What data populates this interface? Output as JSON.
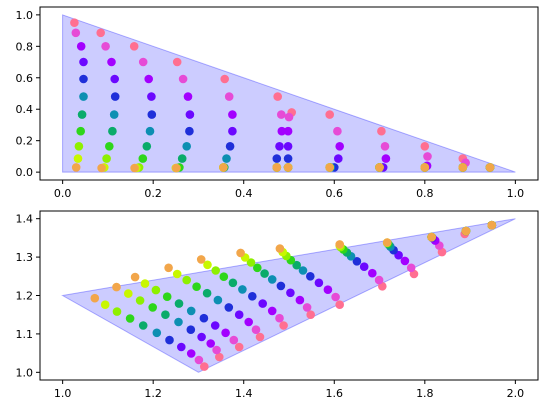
{
  "chart_data": [
    {
      "type": "scatter",
      "title": "",
      "xlabel": "",
      "ylabel": "",
      "xlim": [
        -0.05,
        1.05
      ],
      "ylim": [
        -0.05,
        1.05
      ],
      "xticks": [
        0.0,
        0.2,
        0.4,
        0.6,
        0.8,
        1.0
      ],
      "yticks": [
        0.0,
        0.2,
        0.4,
        0.6,
        0.8,
        1.0
      ],
      "xtick_labels": [
        "0.0",
        "0.2",
        "0.4",
        "0.6",
        "0.8",
        "1.0"
      ],
      "ytick_labels": [
        "0.0",
        "0.2",
        "0.4",
        "0.6",
        "0.8",
        "1.0"
      ],
      "grid": false,
      "region_polygon": [
        [
          0,
          0
        ],
        [
          1,
          0
        ],
        [
          0,
          1
        ]
      ],
      "region_color": "#0000ff",
      "colors": [
        "#ff6f91",
        "#e64bd6",
        "#a300ff",
        "#6b08ff",
        "#1f2fd9",
        "#0d8fb2",
        "#0aab6a",
        "#2ed61a",
        "#8ef000",
        "#c8f700",
        "#f2a64a"
      ],
      "series": [
        {
          "x": [
            0.026,
            0.029,
            0.041,
            0.046,
            0.046,
            0.046,
            0.043,
            0.04,
            0.036,
            0.034,
            0.03
          ],
          "y": [
            0.95,
            0.886,
            0.8,
            0.7,
            0.592,
            0.48,
            0.366,
            0.26,
            0.164,
            0.086,
            0.03
          ]
        },
        {
          "x": [
            0.084,
            0.095,
            0.108,
            0.115,
            0.116,
            0.114,
            0.11,
            0.103,
            0.097,
            0.092,
            0.086
          ],
          "y": [
            0.886,
            0.8,
            0.7,
            0.592,
            0.48,
            0.366,
            0.26,
            0.164,
            0.086,
            0.03,
            0.026
          ]
        },
        {
          "x": [
            0.158,
            0.178,
            0.19,
            0.196,
            0.197,
            0.193,
            0.186,
            0.177,
            0.169,
            0.163,
            0.159
          ],
          "y": [
            0.8,
            0.7,
            0.592,
            0.48,
            0.366,
            0.26,
            0.164,
            0.086,
            0.03,
            0.026,
            0.026
          ]
        },
        {
          "x": [
            0.253,
            0.266,
            0.277,
            0.281,
            0.28,
            0.274,
            0.264,
            0.258,
            0.252,
            0.25,
            0.251
          ],
          "y": [
            0.7,
            0.592,
            0.48,
            0.366,
            0.26,
            0.164,
            0.086,
            0.03,
            0.026,
            0.026,
            0.026
          ]
        },
        {
          "x": [
            0.358,
            0.368,
            0.375,
            0.375,
            0.37,
            0.362,
            0.357,
            0.355,
            0.355,
            0.355,
            0.355
          ],
          "y": [
            0.592,
            0.48,
            0.366,
            0.26,
            0.164,
            0.086,
            0.03,
            0.03,
            0.03,
            0.03,
            0.03
          ]
        },
        {
          "x": [
            0.475,
            0.483,
            0.484,
            0.479,
            0.473,
            0.473,
            0.473,
            0.473,
            0.473,
            0.473,
            0.473
          ],
          "y": [
            0.48,
            0.366,
            0.26,
            0.164,
            0.086,
            0.03,
            0.03,
            0.03,
            0.03,
            0.03,
            0.03
          ]
        },
        {
          "x": [
            0.506,
            0.5,
            0.498,
            0.498,
            0.498,
            0.498,
            0.498,
            0.498,
            0.498,
            0.498,
            0.498
          ],
          "y": [
            0.38,
            0.35,
            0.26,
            0.164,
            0.086,
            0.03,
            0.03,
            0.03,
            0.03,
            0.03,
            0.03
          ]
        },
        {
          "x": [
            0.59,
            0.607,
            0.612,
            0.609,
            0.6,
            0.592,
            0.59,
            0.59,
            0.59,
            0.59,
            0.59
          ],
          "y": [
            0.366,
            0.26,
            0.164,
            0.086,
            0.03,
            0.03,
            0.03,
            0.03,
            0.03,
            0.03,
            0.03
          ]
        },
        {
          "x": [
            0.704,
            0.712,
            0.714,
            0.708,
            0.7,
            0.7,
            0.7,
            0.7,
            0.7,
            0.7,
            0.7
          ],
          "y": [
            0.26,
            0.164,
            0.086,
            0.03,
            0.03,
            0.03,
            0.03,
            0.03,
            0.03,
            0.03,
            0.03
          ]
        },
        {
          "x": [
            0.8,
            0.806,
            0.805,
            0.8,
            0.8,
            0.8,
            0.8,
            0.8,
            0.8,
            0.8,
            0.8
          ],
          "y": [
            0.164,
            0.1,
            0.04,
            0.03,
            0.03,
            0.03,
            0.03,
            0.03,
            0.03,
            0.03,
            0.03
          ]
        },
        {
          "x": [
            0.884,
            0.89,
            0.884,
            0.884,
            0.884,
            0.884,
            0.884,
            0.884,
            0.884,
            0.884,
            0.884
          ],
          "y": [
            0.086,
            0.06,
            0.03,
            0.03,
            0.03,
            0.03,
            0.03,
            0.03,
            0.03,
            0.03,
            0.03
          ]
        },
        {
          "x": [
            0.944,
            0.944,
            0.944,
            0.944,
            0.944,
            0.944,
            0.944,
            0.944,
            0.944,
            0.944,
            0.944
          ],
          "y": [
            0.03,
            0.03,
            0.03,
            0.03,
            0.03,
            0.03,
            0.03,
            0.03,
            0.03,
            0.03,
            0.03
          ]
        }
      ]
    },
    {
      "type": "scatter",
      "title": "",
      "xlabel": "",
      "ylabel": "",
      "xlim": [
        0.95,
        2.05
      ],
      "ylim": [
        0.98,
        1.42
      ],
      "xticks": [
        1.0,
        1.2,
        1.4,
        1.6,
        1.8,
        2.0
      ],
      "yticks": [
        1.0,
        1.1,
        1.2,
        1.3,
        1.4
      ],
      "xtick_labels": [
        "1.0",
        "1.2",
        "1.4",
        "1.6",
        "1.8",
        "2.0"
      ],
      "ytick_labels": [
        "1.0",
        "1.1",
        "1.2",
        "1.3",
        "1.4"
      ],
      "grid": false,
      "region_polygon": [
        [
          1.0,
          1.2
        ],
        [
          2.0,
          1.4
        ],
        [
          1.3,
          1.0
        ]
      ],
      "region_color": "#0000ff",
      "colors": [
        "#ff6f91",
        "#e64bd6",
        "#a300ff",
        "#6b08ff",
        "#1f2fd9",
        "#0d8fb2",
        "#0aab6a",
        "#2ed61a",
        "#8ef000",
        "#c8f700",
        "#f2a64a"
      ],
      "series": [
        {
          "x": [
            1.313,
            1.301,
            1.284,
            1.262,
            1.236,
            1.208,
            1.178,
            1.149,
            1.12,
            1.094,
            1.071
          ],
          "y": [
            1.015,
            1.032,
            1.049,
            1.066,
            1.084,
            1.103,
            1.122,
            1.14,
            1.158,
            1.176,
            1.193
          ]
        },
        {
          "x": [
            1.346,
            1.34,
            1.327,
            1.307,
            1.283,
            1.256,
            1.227,
            1.199,
            1.171,
            1.145,
            1.119
          ],
          "y": [
            1.04,
            1.058,
            1.075,
            1.092,
            1.111,
            1.131,
            1.15,
            1.169,
            1.187,
            1.205,
            1.222
          ]
        },
        {
          "x": [
            1.39,
            1.378,
            1.36,
            1.337,
            1.312,
            1.284,
            1.257,
            1.231,
            1.206,
            1.182,
            1.16
          ],
          "y": [
            1.066,
            1.084,
            1.103,
            1.122,
            1.141,
            1.16,
            1.179,
            1.197,
            1.214,
            1.231,
            1.248
          ]
        },
        {
          "x": [
            1.436,
            1.427,
            1.411,
            1.39,
            1.367,
            1.343,
            1.319,
            1.296,
            1.274,
            1.253,
            1.234
          ],
          "y": [
            1.092,
            1.111,
            1.131,
            1.15,
            1.169,
            1.188,
            1.206,
            1.223,
            1.24,
            1.256,
            1.272
          ]
        },
        {
          "x": [
            1.488,
            1.479,
            1.463,
            1.442,
            1.419,
            1.397,
            1.376,
            1.356,
            1.338,
            1.32,
            1.306
          ],
          "y": [
            1.122,
            1.141,
            1.16,
            1.179,
            1.198,
            1.216,
            1.233,
            1.249,
            1.265,
            1.28,
            1.294
          ]
        },
        {
          "x": [
            1.548,
            1.54,
            1.524,
            1.503,
            1.482,
            1.463,
            1.446,
            1.43,
            1.416,
            1.403,
            1.393
          ],
          "y": [
            1.15,
            1.169,
            1.188,
            1.207,
            1.225,
            1.242,
            1.257,
            1.272,
            1.286,
            1.299,
            1.311
          ]
        },
        {
          "x": [
            1.612,
            1.603,
            1.586,
            1.566,
            1.547,
            1.531,
            1.517,
            1.504,
            1.494,
            1.486,
            1.48
          ],
          "y": [
            1.176,
            1.196,
            1.215,
            1.233,
            1.25,
            1.265,
            1.279,
            1.292,
            1.303,
            1.313,
            1.322
          ]
        },
        {
          "x": [
            1.706,
            1.699,
            1.684,
            1.666,
            1.65,
            1.637,
            1.628,
            1.62,
            1.614,
            1.612,
            1.612
          ],
          "y": [
            1.224,
            1.24,
            1.258,
            1.275,
            1.289,
            1.302,
            1.312,
            1.32,
            1.326,
            1.33,
            1.333
          ]
        },
        {
          "x": [
            1.776,
            1.77,
            1.756,
            1.742,
            1.731,
            1.724,
            1.72,
            1.718,
            1.717,
            1.717,
            1.717
          ],
          "y": [
            1.256,
            1.272,
            1.29,
            1.305,
            1.318,
            1.327,
            1.333,
            1.336,
            1.337,
            1.338,
            1.338
          ]
        },
        {
          "x": [
            1.838,
            1.832,
            1.823,
            1.817,
            1.815,
            1.815,
            1.815,
            1.815,
            1.815,
            1.815,
            1.815
          ],
          "y": [
            1.313,
            1.33,
            1.343,
            1.35,
            1.352,
            1.352,
            1.352,
            1.352,
            1.352,
            1.352,
            1.352
          ]
        },
        {
          "x": [
            1.888,
            1.891,
            1.891,
            1.891,
            1.891,
            1.891,
            1.891,
            1.891,
            1.891,
            1.891,
            1.891
          ],
          "y": [
            1.36,
            1.368,
            1.368,
            1.368,
            1.368,
            1.368,
            1.368,
            1.368,
            1.368,
            1.368,
            1.368
          ]
        },
        {
          "x": [
            1.948,
            1.948,
            1.948,
            1.948,
            1.948,
            1.948,
            1.948,
            1.948,
            1.948,
            1.948,
            1.948
          ],
          "y": [
            1.383,
            1.383,
            1.383,
            1.383,
            1.383,
            1.383,
            1.383,
            1.383,
            1.383,
            1.383,
            1.383
          ]
        }
      ]
    }
  ]
}
